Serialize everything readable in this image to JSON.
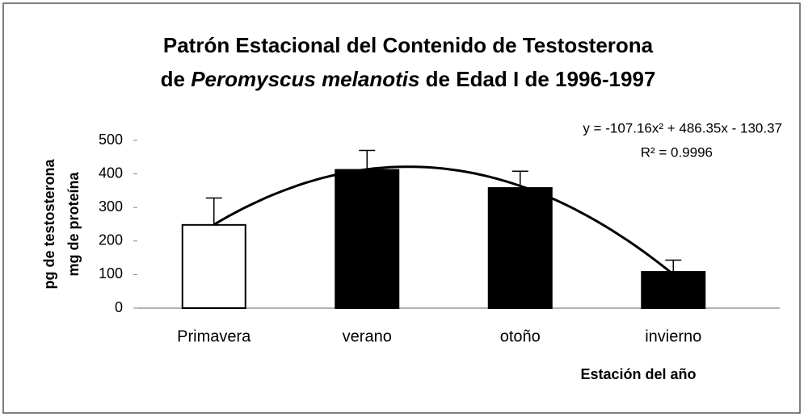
{
  "chart_data": {
    "type": "bar",
    "title": [
      "Patrón Estacional del Contenido de Testosterona",
      "de ",
      "Peromyscus melanotis",
      " de Edad I de 1996-1997"
    ],
    "y_label": [
      "pg de testosterona",
      "mg de proteína"
    ],
    "x_label": "Estación del año",
    "categories": [
      "Primavera",
      "verano",
      "otoño",
      "invierno"
    ],
    "values": [
      248,
      412,
      358,
      108
    ],
    "errors": [
      80,
      58,
      50,
      35
    ],
    "colors": [
      "#ffffff",
      "#000000",
      "#000000",
      "#000000"
    ],
    "ylim": [
      0,
      500
    ],
    "yticks": [
      0,
      100,
      200,
      300,
      400,
      500
    ],
    "trendline": {
      "coefficients": [
        -107.16,
        486.35,
        -130.37
      ],
      "equation": "y = -107.16x² + 486.35x - 130.37",
      "r_squared": "R² = 0.9996"
    }
  }
}
